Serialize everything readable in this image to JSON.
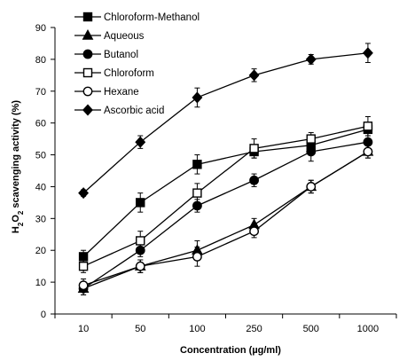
{
  "chart_data": {
    "type": "line",
    "categories": [
      "10",
      "50",
      "100",
      "250",
      "500",
      "1000"
    ],
    "xlabel": "Concentration (µg/ml)",
    "ylabel": {
      "prefix": "H",
      "sub1": "2",
      "mid": "O",
      "sub2": "2",
      "suffix": " scavenging activity (%)"
    },
    "ylim": [
      0,
      90
    ],
    "yticks": [
      0,
      10,
      20,
      30,
      40,
      50,
      60,
      70,
      80,
      90
    ],
    "grid": false,
    "legend_position": "top-left",
    "series": [
      {
        "name": "Chloroform-Methanol",
        "marker": "square-filled",
        "values": [
          18,
          35,
          47,
          51,
          53,
          58
        ],
        "errors": [
          2,
          3,
          3,
          2,
          2,
          2
        ]
      },
      {
        "name": "Aqueous",
        "marker": "triangle-filled",
        "values": [
          8,
          15,
          20,
          28,
          40,
          51
        ],
        "errors": [
          2,
          2,
          3,
          2,
          2,
          2
        ]
      },
      {
        "name": "Butanol",
        "marker": "circle-filled",
        "values": [
          8,
          20,
          34,
          42,
          51,
          54
        ],
        "errors": [
          2,
          2,
          2,
          2,
          3,
          3
        ]
      },
      {
        "name": "Chloroform",
        "marker": "square-open",
        "values": [
          15,
          23,
          38,
          52,
          55,
          59
        ],
        "errors": [
          2,
          3,
          3,
          3,
          2,
          3
        ]
      },
      {
        "name": "Hexane",
        "marker": "circle-open",
        "values": [
          9,
          15,
          18,
          26,
          40,
          51
        ],
        "errors": [
          2,
          2,
          3,
          2,
          2,
          2
        ]
      },
      {
        "name": "Ascorbic acid",
        "marker": "diamond-filled",
        "values": [
          38,
          54,
          68,
          75,
          80,
          82
        ],
        "errors": [
          1,
          2,
          3,
          2,
          1.5,
          3
        ]
      }
    ]
  }
}
